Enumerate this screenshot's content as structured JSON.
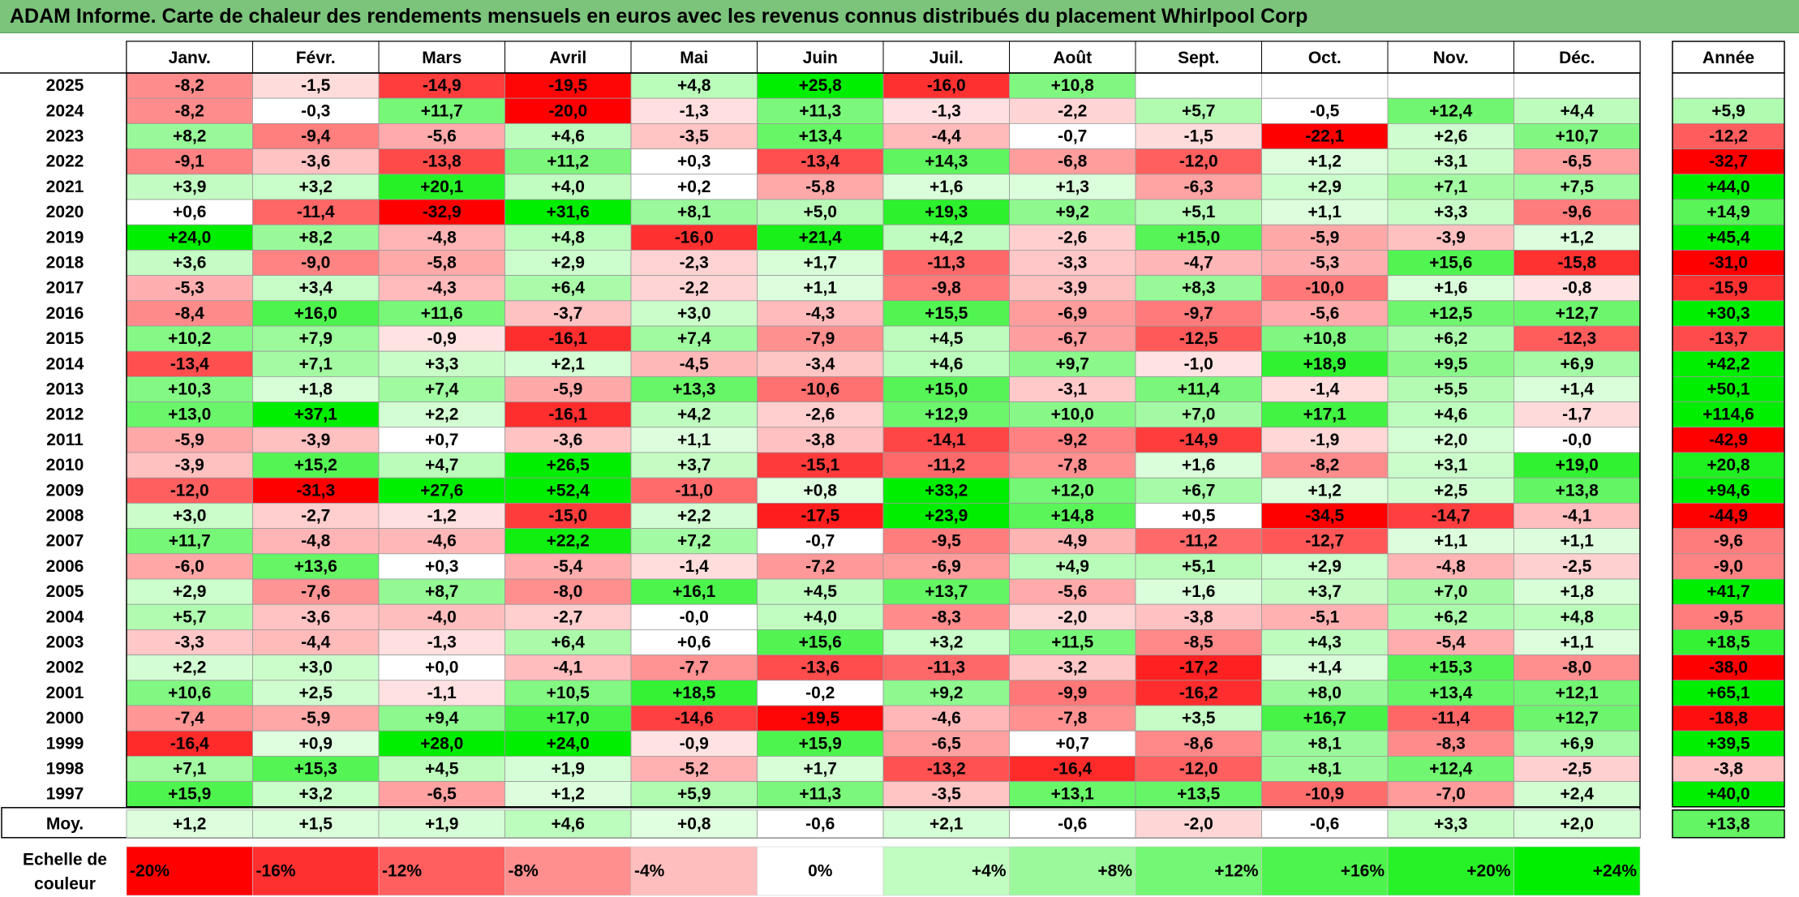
{
  "title": "ADAM Informe. Carte de chaleur des rendements mensuels en euros avec les revenus connus distribués du placement Whirlpool Corp",
  "chart_data": {
    "type": "heatmap",
    "title": "ADAM Informe. Carte de chaleur des rendements mensuels en euros avec les revenus connus distribués du placement Whirlpool Corp",
    "columns": [
      "Janv.",
      "Févr.",
      "Mars",
      "Avril",
      "Mai",
      "Juin",
      "Juil.",
      "Août",
      "Sept.",
      "Oct.",
      "Nov.",
      "Déc."
    ],
    "annual_header": "Année",
    "rows": [
      {
        "year": "2025",
        "values": [
          "-8,2",
          "-1,5",
          "-14,9",
          "-19,5",
          "+4,8",
          "+25,8",
          "-16,0",
          "+10,8",
          "",
          "",
          "",
          ""
        ],
        "annual": ""
      },
      {
        "year": "2024",
        "values": [
          "-8,2",
          "-0,3",
          "+11,7",
          "-20,0",
          "-1,3",
          "+11,3",
          "-1,3",
          "-2,2",
          "+5,7",
          "-0,5",
          "+12,4",
          "+4,4"
        ],
        "annual": "+5,9"
      },
      {
        "year": "2023",
        "values": [
          "+8,2",
          "-9,4",
          "-5,6",
          "+4,6",
          "-3,5",
          "+13,4",
          "-4,4",
          "-0,7",
          "-1,5",
          "-22,1",
          "+2,6",
          "+10,7"
        ],
        "annual": "-12,2"
      },
      {
        "year": "2022",
        "values": [
          "-9,1",
          "-3,6",
          "-13,8",
          "+11,2",
          "+0,3",
          "-13,4",
          "+14,3",
          "-6,8",
          "-12,0",
          "+1,2",
          "+3,1",
          "-6,5"
        ],
        "annual": "-32,7"
      },
      {
        "year": "2021",
        "values": [
          "+3,9",
          "+3,2",
          "+20,1",
          "+4,0",
          "+0,2",
          "-5,8",
          "+1,6",
          "+1,3",
          "-6,3",
          "+2,9",
          "+7,1",
          "+7,5"
        ],
        "annual": "+44,0"
      },
      {
        "year": "2020",
        "values": [
          "+0,6",
          "-11,4",
          "-32,9",
          "+31,6",
          "+8,1",
          "+5,0",
          "+19,3",
          "+9,2",
          "+5,1",
          "+1,1",
          "+3,3",
          "-9,6"
        ],
        "annual": "+14,9"
      },
      {
        "year": "2019",
        "values": [
          "+24,0",
          "+8,2",
          "-4,8",
          "+4,8",
          "-16,0",
          "+21,4",
          "+4,2",
          "-2,6",
          "+15,0",
          "-5,9",
          "-3,9",
          "+1,2"
        ],
        "annual": "+45,4"
      },
      {
        "year": "2018",
        "values": [
          "+3,6",
          "-9,0",
          "-5,8",
          "+2,9",
          "-2,3",
          "+1,7",
          "-11,3",
          "-3,3",
          "-4,7",
          "-5,3",
          "+15,6",
          "-15,8"
        ],
        "annual": "-31,0"
      },
      {
        "year": "2017",
        "values": [
          "-5,3",
          "+3,4",
          "-4,3",
          "+6,4",
          "-2,2",
          "+1,1",
          "-9,8",
          "-3,9",
          "+8,3",
          "-10,0",
          "+1,6",
          "-0,8"
        ],
        "annual": "-15,9"
      },
      {
        "year": "2016",
        "values": [
          "-8,4",
          "+16,0",
          "+11,6",
          "-3,7",
          "+3,0",
          "-4,3",
          "+15,5",
          "-6,9",
          "-9,7",
          "-5,6",
          "+12,5",
          "+12,7"
        ],
        "annual": "+30,3"
      },
      {
        "year": "2015",
        "values": [
          "+10,2",
          "+7,9",
          "-0,9",
          "-16,1",
          "+7,4",
          "-7,9",
          "+4,5",
          "-6,7",
          "-12,5",
          "+10,8",
          "+6,2",
          "-12,3"
        ],
        "annual": "-13,7"
      },
      {
        "year": "2014",
        "values": [
          "-13,4",
          "+7,1",
          "+3,3",
          "+2,1",
          "-4,5",
          "-3,4",
          "+4,6",
          "+9,7",
          "-1,0",
          "+18,9",
          "+9,5",
          "+6,9"
        ],
        "annual": "+42,2"
      },
      {
        "year": "2013",
        "values": [
          "+10,3",
          "+1,8",
          "+7,4",
          "-5,9",
          "+13,3",
          "-10,6",
          "+15,0",
          "-3,1",
          "+11,4",
          "-1,4",
          "+5,5",
          "+1,4"
        ],
        "annual": "+50,1"
      },
      {
        "year": "2012",
        "values": [
          "+13,0",
          "+37,1",
          "+2,2",
          "-16,1",
          "+4,2",
          "-2,6",
          "+12,9",
          "+10,0",
          "+7,0",
          "+17,1",
          "+4,6",
          "-1,7"
        ],
        "annual": "+114,6"
      },
      {
        "year": "2011",
        "values": [
          "-5,9",
          "-3,9",
          "+0,7",
          "-3,6",
          "+1,1",
          "-3,8",
          "-14,1",
          "-9,2",
          "-14,9",
          "-1,9",
          "+2,0",
          "-0,0"
        ],
        "annual": "-42,9"
      },
      {
        "year": "2010",
        "values": [
          "-3,9",
          "+15,2",
          "+4,7",
          "+26,5",
          "+3,7",
          "-15,1",
          "-11,2",
          "-7,8",
          "+1,6",
          "-8,2",
          "+3,1",
          "+19,0"
        ],
        "annual": "+20,8"
      },
      {
        "year": "2009",
        "values": [
          "-12,0",
          "-31,3",
          "+27,6",
          "+52,4",
          "-11,0",
          "+0,8",
          "+33,2",
          "+12,0",
          "+6,7",
          "+1,2",
          "+2,5",
          "+13,8"
        ],
        "annual": "+94,6"
      },
      {
        "year": "2008",
        "values": [
          "+3,0",
          "-2,7",
          "-1,2",
          "-15,0",
          "+2,2",
          "-17,5",
          "+23,9",
          "+14,8",
          "+0,5",
          "-34,5",
          "-14,7",
          "-4,1"
        ],
        "annual": "-44,9"
      },
      {
        "year": "2007",
        "values": [
          "+11,7",
          "-4,8",
          "-4,6",
          "+22,2",
          "+7,2",
          "-0,7",
          "-9,5",
          "-4,9",
          "-11,2",
          "-12,7",
          "+1,1",
          "+1,1"
        ],
        "annual": "-9,6"
      },
      {
        "year": "2006",
        "values": [
          "-6,0",
          "+13,6",
          "+0,3",
          "-5,4",
          "-1,4",
          "-7,2",
          "-6,9",
          "+4,9",
          "+5,1",
          "+2,9",
          "-4,8",
          "-2,5"
        ],
        "annual": "-9,0"
      },
      {
        "year": "2005",
        "values": [
          "+2,9",
          "-7,6",
          "+8,7",
          "-8,0",
          "+16,1",
          "+4,5",
          "+13,7",
          "-5,6",
          "+1,6",
          "+3,7",
          "+7,0",
          "+1,8"
        ],
        "annual": "+41,7"
      },
      {
        "year": "2004",
        "values": [
          "+5,7",
          "-3,6",
          "-4,0",
          "-2,7",
          "-0,0",
          "+4,0",
          "-8,3",
          "-2,0",
          "-3,8",
          "-5,1",
          "+6,2",
          "+4,8"
        ],
        "annual": "-9,5"
      },
      {
        "year": "2003",
        "values": [
          "-3,3",
          "-4,4",
          "-1,3",
          "+6,4",
          "+0,6",
          "+15,6",
          "+3,2",
          "+11,5",
          "-8,5",
          "+4,3",
          "-5,4",
          "+1,1"
        ],
        "annual": "+18,5"
      },
      {
        "year": "2002",
        "values": [
          "+2,2",
          "+3,0",
          "+0,0",
          "-4,1",
          "-7,7",
          "-13,6",
          "-11,3",
          "-3,2",
          "-17,2",
          "+1,4",
          "+15,3",
          "-8,0"
        ],
        "annual": "-38,0"
      },
      {
        "year": "2001",
        "values": [
          "+10,6",
          "+2,5",
          "-1,1",
          "+10,5",
          "+18,5",
          "-0,2",
          "+9,2",
          "-9,9",
          "-16,2",
          "+8,0",
          "+13,4",
          "+12,1"
        ],
        "annual": "+65,1"
      },
      {
        "year": "2000",
        "values": [
          "-7,4",
          "-5,9",
          "+9,4",
          "+17,0",
          "-14,6",
          "-19,5",
          "-4,6",
          "-7,8",
          "+3,5",
          "+16,7",
          "-11,4",
          "+12,7"
        ],
        "annual": "-18,8"
      },
      {
        "year": "1999",
        "values": [
          "-16,4",
          "+0,9",
          "+28,0",
          "+24,0",
          "-0,9",
          "+15,9",
          "-6,5",
          "+0,7",
          "-8,6",
          "+8,1",
          "-8,3",
          "+6,9"
        ],
        "annual": "+39,5"
      },
      {
        "year": "1998",
        "values": [
          "+7,1",
          "+15,3",
          "+4,5",
          "+1,9",
          "-5,2",
          "+1,7",
          "-13,2",
          "-16,4",
          "-12,0",
          "+8,1",
          "+12,4",
          "-2,5"
        ],
        "annual": "-3,8"
      },
      {
        "year": "1997",
        "values": [
          "+15,9",
          "+3,2",
          "-6,5",
          "+1,2",
          "+5,9",
          "+11,3",
          "-3,5",
          "+13,1",
          "+13,5",
          "-10,9",
          "-7,0",
          "+2,4"
        ],
        "annual": "+40,0"
      }
    ],
    "average": {
      "label": "Moy.",
      "values": [
        "+1,2",
        "+1,5",
        "+1,9",
        "+4,6",
        "+0,8",
        "-0,6",
        "+2,1",
        "-0,6",
        "-2,0",
        "-0,6",
        "+3,3",
        "+2,0"
      ],
      "annual": "+13,8"
    },
    "scale": {
      "label": "Echelle de couleur",
      "items": [
        {
          "label": "-20%",
          "value": -20
        },
        {
          "label": "-16%",
          "value": -16
        },
        {
          "label": "-12%",
          "value": -12
        },
        {
          "label": "-8%",
          "value": -8
        },
        {
          "label": "-4%",
          "value": -4
        },
        {
          "label": "0%",
          "value": 0
        },
        {
          "label": "+4%",
          "value": 4
        },
        {
          "label": "+8%",
          "value": 8
        },
        {
          "label": "+12%",
          "value": 12
        },
        {
          "label": "+16%",
          "value": 16
        },
        {
          "label": "+20%",
          "value": 20
        },
        {
          "label": "+24%",
          "value": 24
        }
      ]
    },
    "colors": {
      "negative_strong": "#ff0000",
      "negative_light": "#ffecec",
      "neutral": "#ffffff",
      "positive_light": "#e6ffe6",
      "positive_strong": "#00ee00",
      "title_bar": "#7cc47c"
    }
  }
}
